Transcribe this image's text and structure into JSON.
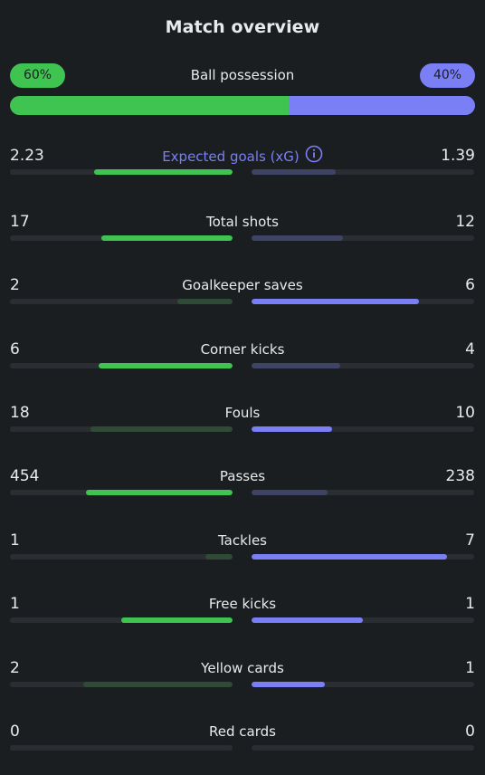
{
  "header": {
    "title": "Match overview"
  },
  "possession": {
    "label": "Ball possession",
    "home_text": "60%",
    "away_text": "40%",
    "home_value": 60,
    "away_value": 40
  },
  "colors": {
    "home": "#3fc451",
    "home_weak": "#2f4a37",
    "away": "#7b7ff5",
    "away_weak": "#3f4364",
    "background": "#1b1e21",
    "track": "#2a2e33"
  },
  "stats": [
    {
      "label": "Expected goals (xG)",
      "home": "2.23",
      "away": "1.39",
      "home_fill": 0.62,
      "away_fill": 0.38,
      "home_leads": true,
      "accent": true,
      "has_info": true
    },
    {
      "label": "Total shots",
      "home": "17",
      "away": "12",
      "home_fill": 0.59,
      "away_fill": 0.41,
      "home_leads": true
    },
    {
      "label": "Goalkeeper saves",
      "home": "2",
      "away": "6",
      "home_fill": 0.25,
      "away_fill": 0.75,
      "home_leads": false
    },
    {
      "label": "Corner kicks",
      "home": "6",
      "away": "4",
      "home_fill": 0.6,
      "away_fill": 0.4,
      "home_leads": true
    },
    {
      "label": "Fouls",
      "home": "18",
      "away": "10",
      "home_fill": 0.64,
      "away_fill": 0.36,
      "home_leads": false
    },
    {
      "label": "Passes",
      "home": "454",
      "away": "238",
      "home_fill": 0.66,
      "away_fill": 0.34,
      "home_leads": true
    },
    {
      "label": "Tackles",
      "home": "1",
      "away": "7",
      "home_fill": 0.12,
      "away_fill": 0.88,
      "home_leads": false
    },
    {
      "label": "Free kicks",
      "home": "1",
      "away": "1",
      "home_fill": 0.5,
      "away_fill": 0.5,
      "home_leads": true,
      "tie": true
    },
    {
      "label": "Yellow cards",
      "home": "2",
      "away": "1",
      "home_fill": 0.67,
      "away_fill": 0.33,
      "home_leads": false
    },
    {
      "label": "Red cards",
      "home": "0",
      "away": "0",
      "home_fill": 0,
      "away_fill": 0,
      "home_leads": false
    }
  ]
}
